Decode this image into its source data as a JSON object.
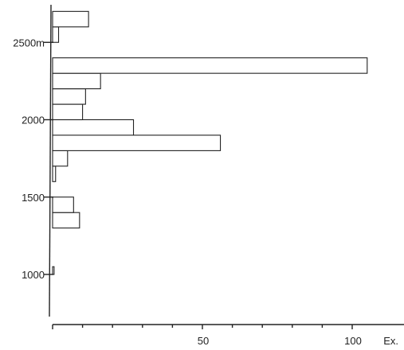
{
  "chart_data": {
    "type": "bar",
    "orientation": "horizontal",
    "title": "",
    "xlabel": "Ex.",
    "ylabel": "",
    "xlim": [
      0,
      120
    ],
    "ylim": [
      700,
      2800
    ],
    "x_ticks": [
      0,
      10,
      20,
      30,
      40,
      50,
      60,
      70,
      80,
      90,
      100
    ],
    "x_tick_labels": [
      {
        "value": 50,
        "label": "50"
      },
      {
        "value": 100,
        "label": "100"
      }
    ],
    "y_ticks": [
      {
        "value": 1000,
        "label": "1000"
      },
      {
        "value": 1500,
        "label": "1500"
      },
      {
        "value": 2000,
        "label": "2000"
      },
      {
        "value": 2500,
        "label": "2500m"
      }
    ],
    "grid": false,
    "bins": [
      {
        "from": 1000,
        "to": 1050,
        "value": 0.5
      },
      {
        "from": 1300,
        "to": 1400,
        "value": 9
      },
      {
        "from": 1400,
        "to": 1500,
        "value": 7
      },
      {
        "from": 1600,
        "to": 1700,
        "value": 1
      },
      {
        "from": 1700,
        "to": 1800,
        "value": 5
      },
      {
        "from": 1800,
        "to": 1900,
        "value": 56
      },
      {
        "from": 1900,
        "to": 2000,
        "value": 27
      },
      {
        "from": 2000,
        "to": 2100,
        "value": 10
      },
      {
        "from": 2100,
        "to": 2200,
        "value": 11
      },
      {
        "from": 2200,
        "to": 2300,
        "value": 16
      },
      {
        "from": 2300,
        "to": 2400,
        "value": 105
      },
      {
        "from": 2500,
        "to": 2600,
        "value": 2
      },
      {
        "from": 2600,
        "to": 2700,
        "value": 12
      }
    ]
  }
}
